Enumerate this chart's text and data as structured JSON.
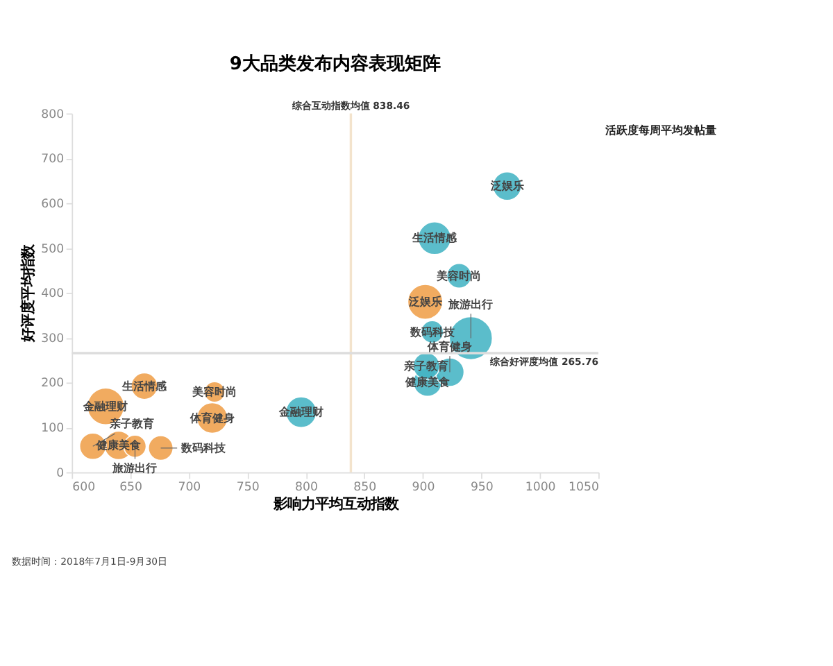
{
  "chart_data": {
    "type": "bubble",
    "title": "9大品类发布内容表现矩阵",
    "xlabel": "影响力平均互动指数",
    "ylabel": "好评度平均指数",
    "legend_title": "活跃度每周平均发帖量",
    "xlim": [
      600,
      1050
    ],
    "xticks": [
      600,
      650,
      700,
      750,
      800,
      850,
      900,
      950,
      1000,
      1050
    ],
    "ylim": [
      0,
      800
    ],
    "yticks": [
      0,
      100,
      200,
      300,
      400,
      500,
      600,
      700,
      800
    ],
    "series": [
      {
        "color": "#f0a04b",
        "x": [
          629,
          640,
          618,
          654,
          662,
          676,
          722,
          720,
          902
        ],
        "values": [
          147,
          60,
          58,
          58,
          192,
          54,
          179,
          121,
          380
        ],
        "sizes": [
          0.73,
          0.44,
          0.38,
          0.27,
          0.38,
          0.33,
          0.23,
          0.51,
          0.66
        ]
      },
      {
        "color": "#45b5c4",
        "x": [
          796,
          972,
          910,
          931,
          908,
          904,
          923,
          941,
          903
        ],
        "values": [
          134,
          638,
          522,
          438,
          313,
          201,
          223,
          299,
          237
        ],
        "sizes": [
          0.51,
          0.44,
          0.58,
          0.33,
          0.27,
          0.44,
          0.44,
          1,
          0.38
        ]
      }
    ],
    "ref_lines": [
      {
        "axis": "x",
        "value": 838.46,
        "label": "综合互动指数均值 838.46",
        "color": "#f3e3cc"
      },
      {
        "axis": "y",
        "value": 265.76,
        "label": "综合好评度均值 265.76",
        "color": "#dddddd"
      }
    ],
    "annotations": [
      {
        "text": "健康美食",
        "x": 640,
        "y": 60
      },
      {
        "text": "金融理财",
        "x": 629,
        "y": 147
      },
      {
        "text": "生活情感",
        "x": 662,
        "y": 192
      },
      {
        "text": "亲子教育",
        "x": 618,
        "y": 58
      },
      {
        "text": "旅游出行",
        "x": 654,
        "y": 58
      },
      {
        "text": "数码科技",
        "x": 676,
        "y": 54
      },
      {
        "text": "美容时尚",
        "x": 722,
        "y": 179
      },
      {
        "text": "体育健身",
        "x": 720,
        "y": 121
      },
      {
        "text": "金融理财",
        "x": 796,
        "y": 134
      },
      {
        "text": "泛娱乐",
        "x": 972,
        "y": 638
      },
      {
        "text": "生活情感",
        "x": 910,
        "y": 522
      },
      {
        "text": "美容时尚",
        "x": 931,
        "y": 438
      },
      {
        "text": "泛娱乐",
        "x": 902,
        "y": 380
      },
      {
        "text": "数码科技",
        "x": 908,
        "y": 313
      },
      {
        "text": "旅游出行",
        "x": 941,
        "y": 299
      },
      {
        "text": "亲子教育",
        "x": 903,
        "y": 237
      },
      {
        "text": "体育健身",
        "x": 923,
        "y": 223
      },
      {
        "text": "健康美食",
        "x": 904,
        "y": 201
      },
      "数据时间：2018年7月1日-9月30日"
    ]
  }
}
